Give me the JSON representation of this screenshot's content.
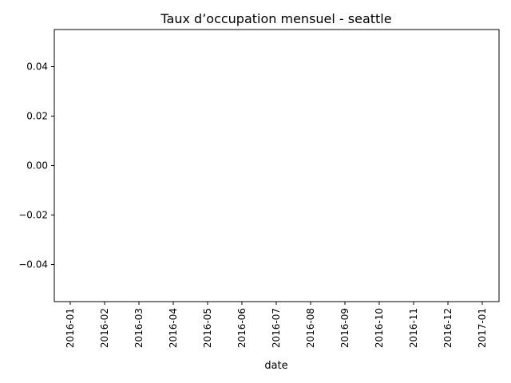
{
  "chart_data": {
    "type": "line",
    "title": "Taux d’occupation mensuel - seattle",
    "xlabel": "date",
    "ylabel": "",
    "x_tick_labels": [
      "2016-01",
      "2016-02",
      "2016-03",
      "2016-04",
      "2016-05",
      "2016-06",
      "2016-07",
      "2016-08",
      "2016-09",
      "2016-10",
      "2016-11",
      "2016-12",
      "2017-01"
    ],
    "y_tick_labels": [
      "0.04",
      "0.02",
      "0.00",
      "−0.02",
      "−0.04"
    ],
    "y_ticks": [
      0.04,
      0.02,
      0.0,
      -0.02,
      -0.04
    ],
    "ylim": [
      -0.055,
      0.055
    ],
    "xlim": [
      "2016-01",
      "2017-01"
    ],
    "grid": false,
    "series": [
      {
        "values": []
      }
    ],
    "colors": {
      "axis": "#000000",
      "background": "#ffffff"
    }
  }
}
